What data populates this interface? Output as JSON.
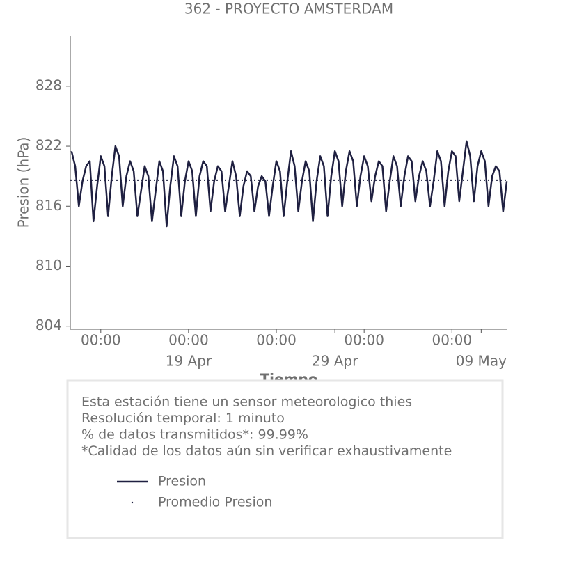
{
  "chart_data": {
    "type": "line",
    "title": "362 - PROYECTO AMSTERDAM",
    "ylabel": "Presion (hPa)",
    "xlabel": "Tiempo",
    "x": [
      "04-11 00:00",
      "04-11 06:00",
      "04-11 12:00",
      "04-11 18:00",
      "04-12 00:00",
      "04-12 06:00",
      "04-12 12:00",
      "04-12 18:00",
      "04-13 00:00",
      "04-13 06:00",
      "04-13 12:00",
      "04-13 18:00",
      "04-14 00:00",
      "04-14 06:00",
      "04-14 12:00",
      "04-14 18:00",
      "04-15 00:00",
      "04-15 06:00",
      "04-15 12:00",
      "04-15 18:00",
      "04-16 00:00",
      "04-16 06:00",
      "04-16 12:00",
      "04-16 18:00",
      "04-17 00:00",
      "04-17 06:00",
      "04-17 12:00",
      "04-17 18:00",
      "04-18 00:00",
      "04-18 06:00",
      "04-18 12:00",
      "04-18 18:00",
      "04-19 00:00",
      "04-19 06:00",
      "04-19 12:00",
      "04-19 18:00",
      "04-20 00:00",
      "04-20 06:00",
      "04-20 12:00",
      "04-20 18:00",
      "04-21 00:00",
      "04-21 06:00",
      "04-21 12:00",
      "04-21 18:00",
      "04-22 00:00",
      "04-22 06:00",
      "04-22 12:00",
      "04-22 18:00",
      "04-23 00:00",
      "04-23 06:00",
      "04-23 12:00",
      "04-23 18:00",
      "04-24 00:00",
      "04-24 06:00",
      "04-24 12:00",
      "04-24 18:00",
      "04-25 00:00",
      "04-25 06:00",
      "04-25 12:00",
      "04-25 18:00",
      "04-26 00:00",
      "04-26 06:00",
      "04-26 12:00",
      "04-26 18:00",
      "04-27 00:00",
      "04-27 06:00",
      "04-27 12:00",
      "04-27 18:00",
      "04-28 00:00",
      "04-28 06:00",
      "04-28 12:00",
      "04-28 18:00",
      "04-29 00:00",
      "04-29 06:00",
      "04-29 12:00",
      "04-29 18:00",
      "04-30 00:00",
      "04-30 06:00",
      "04-30 12:00",
      "04-30 18:00",
      "05-01 00:00",
      "05-01 06:00",
      "05-01 12:00",
      "05-01 18:00",
      "05-02 00:00",
      "05-02 06:00",
      "05-02 12:00",
      "05-02 18:00",
      "05-03 00:00",
      "05-03 06:00",
      "05-03 12:00",
      "05-03 18:00",
      "05-04 00:00",
      "05-04 06:00",
      "05-04 12:00",
      "05-04 18:00",
      "05-05 00:00",
      "05-05 06:00",
      "05-05 12:00",
      "05-05 18:00",
      "05-06 00:00",
      "05-06 06:00",
      "05-06 12:00",
      "05-06 18:00",
      "05-07 00:00",
      "05-07 06:00",
      "05-07 12:00",
      "05-07 18:00",
      "05-08 00:00",
      "05-08 06:00",
      "05-08 12:00",
      "05-08 18:00",
      "05-09 00:00",
      "05-09 06:00",
      "05-09 12:00",
      "05-09 18:00",
      "05-10 00:00",
      "05-10 06:00",
      "05-10 12:00",
      "05-10 18:00"
    ],
    "series": [
      {
        "name": "Presion",
        "color": "#1f2041",
        "values": [
          821.5,
          820,
          816,
          818.5,
          820,
          820.5,
          814.5,
          818,
          821,
          820,
          815,
          819,
          822,
          821,
          816,
          819,
          820.5,
          819.5,
          815,
          817.5,
          820,
          819,
          814.5,
          817.5,
          820.5,
          819.5,
          814,
          818,
          821,
          820,
          815,
          818.5,
          820.5,
          819.5,
          815,
          819,
          820.5,
          820,
          815.5,
          818.5,
          820,
          819.5,
          815.5,
          818,
          820.5,
          819,
          815,
          818,
          819.5,
          819,
          815.5,
          818,
          819,
          818.5,
          815,
          818,
          820.5,
          819.5,
          815,
          818.5,
          821.5,
          820,
          815.5,
          818.5,
          820.5,
          819.5,
          814.5,
          818.5,
          821,
          820,
          815,
          819,
          821.5,
          820.5,
          816,
          819.5,
          821.5,
          820.5,
          816,
          819,
          821,
          820,
          816.5,
          819,
          820.5,
          820,
          815.5,
          818.5,
          821,
          820,
          816,
          819,
          821,
          820.5,
          816.5,
          819,
          820.5,
          819.5,
          816,
          818.5,
          821.5,
          820.5,
          816,
          819.5,
          821.5,
          821,
          816.5,
          819.5,
          822.5,
          821,
          816.5,
          820,
          821.5,
          820.5,
          816,
          819,
          820,
          819.5,
          815.5,
          818.5
        ]
      },
      {
        "name": "Promedio Presion",
        "color": "#1f2041",
        "value": 818.6,
        "style": "dotted"
      }
    ],
    "xlim": [
      "04-10 22:00",
      "05-10 19:00"
    ],
    "xticks": [
      {
        "value": "04-13 00:00",
        "label": "00:00"
      },
      {
        "value": "04-19 00:00",
        "label": "00:00"
      },
      {
        "value": "04-25 00:00",
        "label": "00:00"
      },
      {
        "value": "05-01 00:00",
        "label": "00:00"
      },
      {
        "value": "05-07 00:00",
        "label": "00:00"
      }
    ],
    "xticks_major": [
      {
        "value": "04-19 00:00",
        "label": "19 Apr"
      },
      {
        "value": "04-29 00:00",
        "label": "29 Apr"
      },
      {
        "value": "05-09 00:00",
        "label": "09 May"
      }
    ],
    "ylim": [
      803.7,
      833
    ],
    "yticks": [
      804,
      810,
      816,
      822,
      828
    ],
    "info_box": [
      "Esta estación tiene un sensor meteorologico thies",
      "Resolución temporal: 1 minuto",
      "% de datos transmitidos*: 99.99%",
      "*Calidad de los datos aún sin verificar exhaustivamente"
    ]
  }
}
